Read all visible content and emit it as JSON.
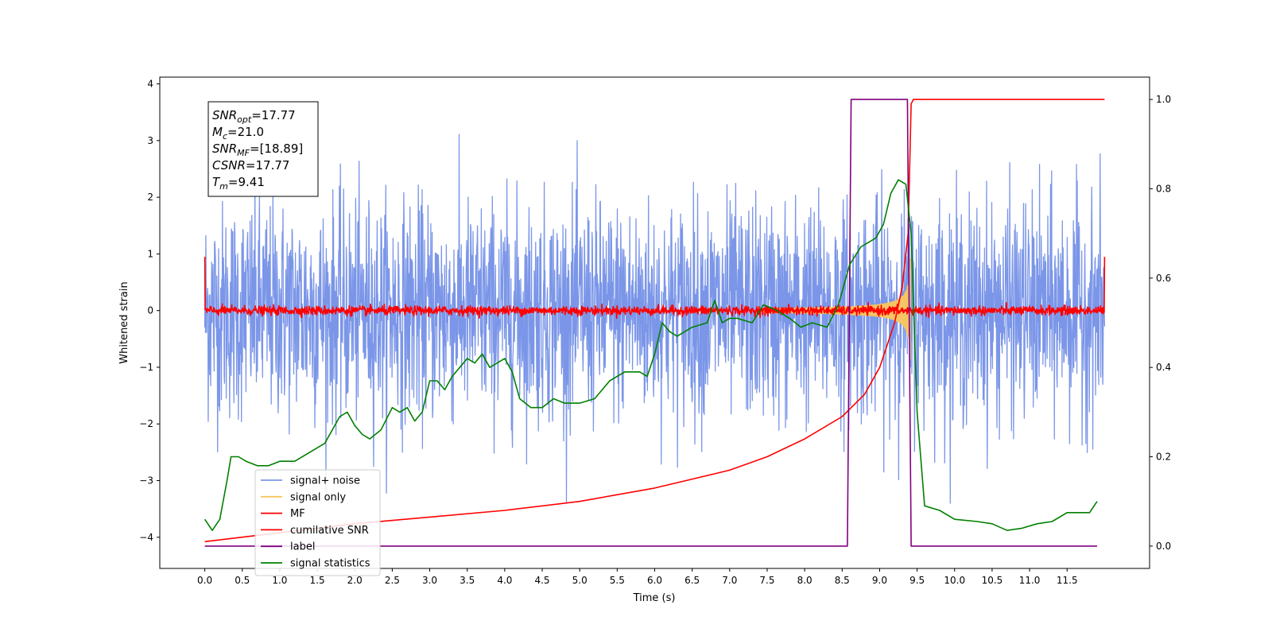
{
  "chart_data": {
    "type": "line",
    "xlabel": "Time (s)",
    "ylabel": "Whitened strain",
    "xlim": [
      -0.6,
      12.6
    ],
    "ylim": [
      -4.55,
      4.12
    ],
    "y2lim": [
      -0.05,
      1.05
    ],
    "x_ticks": [
      "0.0",
      "0.5",
      "1.0",
      "1.5",
      "2.0",
      "2.5",
      "3.0",
      "3.5",
      "4.0",
      "4.5",
      "5.0",
      "5.5",
      "6.0",
      "6.5",
      "7.0",
      "7.5",
      "8.0",
      "8.5",
      "9.0",
      "9.5",
      "10.0",
      "10.5",
      "11.0",
      "11.5"
    ],
    "y_ticks": [
      "4",
      "3",
      "2",
      "1",
      "0",
      "−1",
      "−2",
      "−3",
      "−4"
    ],
    "y2_ticks": [
      "1.0",
      "0.8",
      "0.6",
      "0.4",
      "0.2",
      "0.0"
    ],
    "annotation": {
      "lines": [
        {
          "base": "SNR",
          "sub": "opt",
          "value": "=17.77"
        },
        {
          "base": "M",
          "sub": "c",
          "value": "=21.0"
        },
        {
          "base": "SNR",
          "sub": "MF",
          "value": "=[18.89]"
        },
        {
          "base": "CSNR",
          "sub": "",
          "value": "=17.77"
        },
        {
          "base": "T",
          "sub": "m",
          "value": "=9.41"
        }
      ]
    },
    "legend": {
      "placement": "lower-left",
      "entries": [
        {
          "label": "signal+ noise",
          "color": "#7b96e8"
        },
        {
          "label": "signal only",
          "color": "#f5c563"
        },
        {
          "label": "MF",
          "color": "#ff0000"
        },
        {
          "label": "cumilative SNR",
          "color": "#ff0000"
        },
        {
          "label": "label",
          "color": "#800080"
        },
        {
          "label": "signal statistics",
          "color": "#008000"
        }
      ]
    },
    "series": [
      {
        "name": "signal+ noise",
        "axis": "left",
        "color": "#7b96e8",
        "kind": "noise",
        "x_range": [
          0,
          12
        ],
        "sigma": 0.95,
        "peak_range": [
          -3.4,
          3.2
        ]
      },
      {
        "name": "signal only",
        "axis": "left",
        "color": "#f5c563",
        "kind": "chirp",
        "x_range": [
          7.4,
          9.42
        ],
        "peak_amplitude": 1.9
      },
      {
        "name": "MF",
        "axis": "left",
        "color": "#ff0000",
        "kind": "noise",
        "x_range": [
          0,
          12
        ],
        "sigma": 0.04,
        "edge_value": 0.95
      },
      {
        "name": "cumilative SNR",
        "axis": "right",
        "color": "#ff0000",
        "x": [
          0,
          1,
          2,
          3,
          4,
          5,
          6,
          7,
          7.5,
          8,
          8.5,
          8.8,
          9.0,
          9.2,
          9.3,
          9.38,
          9.42,
          9.45,
          10,
          11,
          12
        ],
        "y": [
          0.01,
          0.03,
          0.05,
          0.065,
          0.08,
          0.1,
          0.13,
          0.17,
          0.2,
          0.24,
          0.29,
          0.34,
          0.4,
          0.5,
          0.58,
          0.7,
          0.99,
          1.0,
          1.0,
          1.0,
          1.0
        ]
      },
      {
        "name": "label",
        "axis": "right",
        "color": "#800080",
        "x": [
          0,
          8.57,
          8.62,
          9.37,
          9.42,
          11.9
        ],
        "y": [
          0,
          0,
          1,
          1,
          0,
          0
        ]
      },
      {
        "name": "signal statistics",
        "axis": "right",
        "color": "#008000",
        "x": [
          0.0,
          0.1,
          0.2,
          0.3,
          0.35,
          0.45,
          0.55,
          0.7,
          0.85,
          1.0,
          1.2,
          1.4,
          1.6,
          1.8,
          1.9,
          2.0,
          2.1,
          2.2,
          2.35,
          2.5,
          2.6,
          2.7,
          2.8,
          2.9,
          3.0,
          3.1,
          3.2,
          3.3,
          3.4,
          3.5,
          3.6,
          3.7,
          3.8,
          3.9,
          4.0,
          4.1,
          4.2,
          4.35,
          4.5,
          4.65,
          4.8,
          5.0,
          5.2,
          5.4,
          5.6,
          5.8,
          5.9,
          6.0,
          6.1,
          6.2,
          6.3,
          6.4,
          6.5,
          6.7,
          6.8,
          6.9,
          7.0,
          7.1,
          7.3,
          7.45,
          7.6,
          7.8,
          7.95,
          8.1,
          8.3,
          8.45,
          8.6,
          8.75,
          8.85,
          8.95,
          9.05,
          9.15,
          9.25,
          9.35,
          9.42,
          9.5,
          9.6,
          9.8,
          10.0,
          10.3,
          10.5,
          10.7,
          10.9,
          11.1,
          11.3,
          11.5,
          11.7,
          11.8,
          11.9
        ],
        "y": [
          0.06,
          0.035,
          0.06,
          0.15,
          0.2,
          0.2,
          0.19,
          0.18,
          0.18,
          0.19,
          0.19,
          0.21,
          0.23,
          0.29,
          0.3,
          0.27,
          0.25,
          0.24,
          0.26,
          0.31,
          0.3,
          0.31,
          0.28,
          0.3,
          0.37,
          0.37,
          0.35,
          0.38,
          0.4,
          0.42,
          0.41,
          0.43,
          0.4,
          0.41,
          0.42,
          0.39,
          0.33,
          0.31,
          0.31,
          0.33,
          0.32,
          0.32,
          0.33,
          0.37,
          0.39,
          0.39,
          0.38,
          0.43,
          0.5,
          0.48,
          0.47,
          0.48,
          0.49,
          0.5,
          0.55,
          0.5,
          0.51,
          0.51,
          0.5,
          0.54,
          0.53,
          0.51,
          0.49,
          0.5,
          0.49,
          0.54,
          0.63,
          0.67,
          0.68,
          0.69,
          0.72,
          0.79,
          0.82,
          0.81,
          0.7,
          0.3,
          0.09,
          0.08,
          0.06,
          0.055,
          0.05,
          0.035,
          0.04,
          0.05,
          0.055,
          0.075,
          0.075,
          0.075,
          0.1
        ]
      }
    ]
  }
}
